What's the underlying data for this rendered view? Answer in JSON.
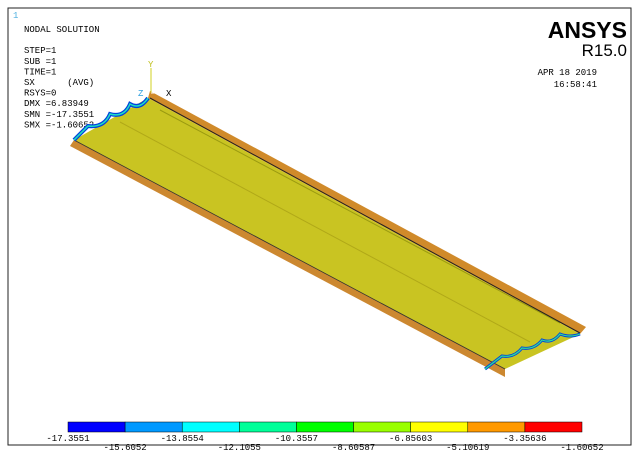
{
  "window_number": "1",
  "header": {
    "lines": [
      "NODAL SOLUTION",
      "",
      "STEP=1",
      "SUB =1",
      "TIME=1",
      "SX      (AVG)",
      "RSYS=0",
      "DMX =6.83949",
      "SMN =-17.3551",
      "SMX =-1.60652"
    ]
  },
  "brand": {
    "name": "ANSYS",
    "version": "R15.0",
    "date": "APR 18 2019",
    "time": "16:58:41"
  },
  "triad": {
    "y": "Y",
    "z": "Z",
    "x": "X"
  },
  "legend": {
    "colors": [
      "#0000ff",
      "#0099ff",
      "#00ffff",
      "#00ff99",
      "#00ff00",
      "#99ff00",
      "#ffff00",
      "#ff9900",
      "#ff0000"
    ],
    "labels": [
      "-17.3551",
      "-15.6052",
      "-13.8554",
      "-12.1055",
      "-10.3557",
      "-8.60587",
      "-6.85603",
      "-5.10619",
      "-3.35636",
      "-1.60652"
    ]
  }
}
